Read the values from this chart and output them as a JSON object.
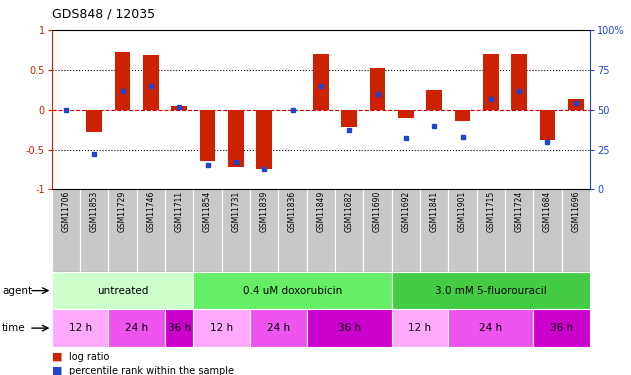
{
  "title": "GDS848 / 12035",
  "samples": [
    "GSM11706",
    "GSM11853",
    "GSM11729",
    "GSM11746",
    "GSM11711",
    "GSM11854",
    "GSM11731",
    "GSM11839",
    "GSM11836",
    "GSM11849",
    "GSM11682",
    "GSM11690",
    "GSM11692",
    "GSM11841",
    "GSM11901",
    "GSM11715",
    "GSM11724",
    "GSM11684",
    "GSM11696"
  ],
  "log_ratio": [
    0.0,
    -0.28,
    0.72,
    0.68,
    0.05,
    -0.65,
    -0.72,
    -0.75,
    0.0,
    0.7,
    -0.22,
    0.52,
    -0.11,
    0.25,
    -0.14,
    0.7,
    0.7,
    -0.38,
    0.13
  ],
  "percentile": [
    50,
    22,
    62,
    65,
    52,
    15,
    17,
    13,
    50,
    65,
    37,
    60,
    32,
    40,
    33,
    57,
    62,
    30,
    54
  ],
  "agent_groups": [
    {
      "label": "untreated",
      "start": 0,
      "end": 5,
      "color": "#ccffcc"
    },
    {
      "label": "0.4 uM doxorubicin",
      "start": 5,
      "end": 12,
      "color": "#66ee66"
    },
    {
      "label": "3.0 mM 5-fluorouracil",
      "start": 12,
      "end": 19,
      "color": "#44cc44"
    }
  ],
  "time_groups": [
    {
      "label": "12 h",
      "start": 0,
      "end": 2,
      "color": "#ffaaff"
    },
    {
      "label": "24 h",
      "start": 2,
      "end": 4,
      "color": "#ee55ee"
    },
    {
      "label": "36 h",
      "start": 4,
      "end": 5,
      "color": "#cc00cc"
    },
    {
      "label": "12 h",
      "start": 5,
      "end": 7,
      "color": "#ffaaff"
    },
    {
      "label": "24 h",
      "start": 7,
      "end": 9,
      "color": "#ee55ee"
    },
    {
      "label": "36 h",
      "start": 9,
      "end": 12,
      "color": "#cc00cc"
    },
    {
      "label": "12 h",
      "start": 12,
      "end": 14,
      "color": "#ffaaff"
    },
    {
      "label": "24 h",
      "start": 14,
      "end": 17,
      "color": "#ee55ee"
    },
    {
      "label": "36 h",
      "start": 17,
      "end": 19,
      "color": "#cc00cc"
    }
  ],
  "bar_color": "#cc2200",
  "dot_color": "#2244cc",
  "ylim": [
    -1,
    1
  ],
  "yticks_left": [
    -1,
    -0.5,
    0,
    0.5,
    1
  ],
  "yticks_right": [
    0,
    25,
    50,
    75,
    100
  ],
  "hlines": [
    -0.5,
    0.0,
    0.5
  ],
  "bg_color": "#ffffff",
  "tick_color_left": "#cc2200",
  "tick_color_right": "#2244cc",
  "label_bg": "#c8c8c8",
  "bar_width": 0.55,
  "title_fontsize": 9,
  "axis_fontsize": 7,
  "sample_fontsize": 5.5,
  "row_fontsize": 7.5
}
